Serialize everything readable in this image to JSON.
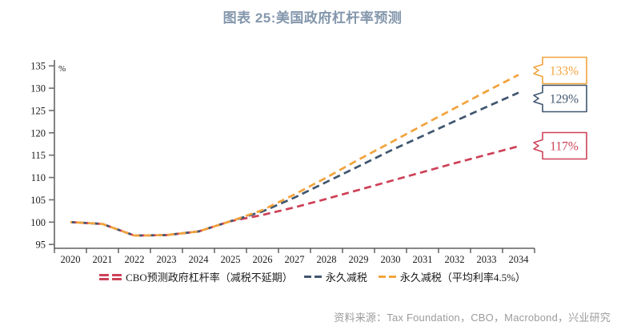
{
  "title": "图表 25:美国政府杠杆率预测",
  "source": "资料来源：Tax Foundation，CBO，Macrobond，兴业研究",
  "colors": {
    "title": "#8497AC",
    "axis": "#404040",
    "tick_label": "#1a1a1a",
    "legend_text": "#1a1a1a",
    "source_text": "#9c9c9c",
    "red": "#CD4157",
    "navy": "#40566F",
    "orange": "#F2A33C"
  },
  "chart_data": {
    "type": "line",
    "title": "图表 25:美国政府杠杆率预测",
    "unit_label": "%",
    "grid": false,
    "legend_position": "bottom",
    "ylim": [
      95,
      135
    ],
    "yticks": [
      95,
      100,
      105,
      110,
      115,
      120,
      125,
      130,
      135
    ],
    "x": [
      2020,
      2021,
      2022,
      2023,
      2024,
      2025,
      2026,
      2027,
      2028,
      2029,
      2030,
      2031,
      2032,
      2033,
      2034
    ],
    "series": [
      {
        "name": "CBO预测政府杠杆率（减税不延期）",
        "color": "#CD4157",
        "marker": "double-dash",
        "end_label": "117%",
        "values": [
          100,
          99.6,
          97.0,
          97.1,
          97.9,
          100.2,
          101.6,
          103.3,
          105.2,
          107.2,
          109.2,
          111.2,
          113.2,
          115.1,
          117
        ]
      },
      {
        "name": "永久减税",
        "color": "#40566F",
        "marker": "dash",
        "end_label": "129%",
        "values": [
          100,
          99.6,
          97.0,
          97.1,
          97.9,
          100.2,
          102.4,
          105.5,
          109.0,
          112.5,
          116.0,
          119.3,
          122.6,
          125.8,
          129
        ]
      },
      {
        "name": "永久减税（平均利率4.5%）",
        "color": "#F2A33C",
        "marker": "dash",
        "end_label": "133%",
        "values": [
          100,
          99.6,
          97.0,
          97.1,
          97.9,
          100.2,
          102.7,
          106.2,
          110.0,
          114.0,
          117.8,
          121.7,
          125.5,
          129.3,
          133
        ]
      }
    ]
  },
  "callouts": [
    {
      "label": "133%",
      "color": "#F2A33C"
    },
    {
      "label": "129%",
      "color": "#40566F"
    },
    {
      "label": "117%",
      "color": "#CD4157"
    }
  ]
}
